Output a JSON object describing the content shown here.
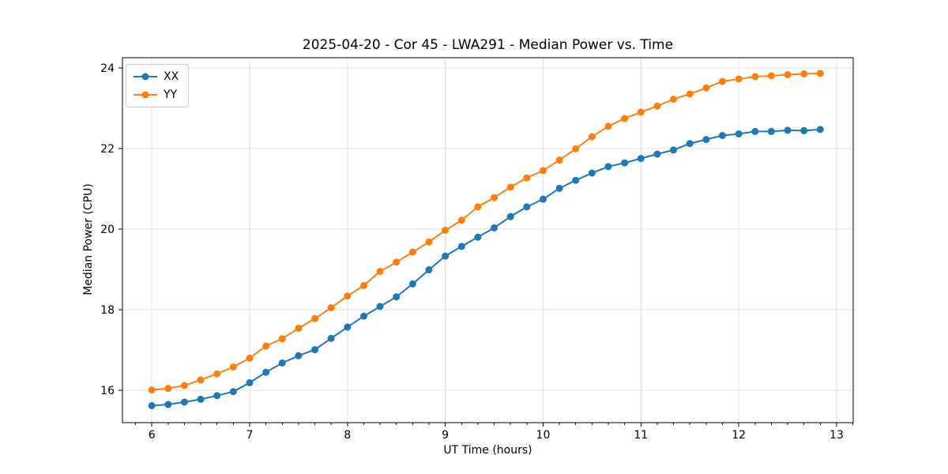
{
  "figure": {
    "background": "#ffffff",
    "text_color": "#000000",
    "grid_color": "#e0e0e0",
    "spine_color": "#000000"
  },
  "chart": {
    "title": "2025-04-20 - Cor 45 - LWA291 - Median Power vs. Time",
    "xlabel": "UT Time (hours)",
    "ylabel": "Median Power (CPU)"
  },
  "legend": {
    "position": "upper left",
    "items": [
      {
        "label": "XX",
        "color": "#1f77b4"
      },
      {
        "label": "YY",
        "color": "#ff7f0e"
      }
    ]
  },
  "chart_data": {
    "type": "line",
    "title": "2025-04-20 - Cor 45 - LWA291 - Median Power vs. Time",
    "xlabel": "UT Time (hours)",
    "ylabel": "Median Power (CPU)",
    "marker": "o",
    "grid": true,
    "legend_position": "upper left",
    "xlim": [
      5.7,
      13.17
    ],
    "ylim": [
      15.2,
      24.25
    ],
    "x_major_ticks": [
      6,
      7,
      8,
      9,
      10,
      11,
      12,
      13
    ],
    "x_minor_step": 0.166667,
    "y_major_ticks": [
      16,
      18,
      20,
      22,
      24
    ],
    "x": [
      6.0,
      6.167,
      6.333,
      6.5,
      6.667,
      6.833,
      7.0,
      7.167,
      7.333,
      7.5,
      7.667,
      7.833,
      8.0,
      8.167,
      8.333,
      8.5,
      8.667,
      8.833,
      9.0,
      9.167,
      9.333,
      9.5,
      9.667,
      9.833,
      10.0,
      10.167,
      10.333,
      10.5,
      10.667,
      10.833,
      11.0,
      11.167,
      11.333,
      11.5,
      11.667,
      11.833,
      12.0,
      12.167,
      12.333,
      12.5,
      12.667,
      12.833
    ],
    "series": [
      {
        "name": "XX",
        "color": "#1f77b4",
        "values": [
          15.62,
          15.65,
          15.71,
          15.78,
          15.87,
          15.97,
          16.19,
          16.45,
          16.68,
          16.86,
          17.01,
          17.29,
          17.57,
          17.84,
          18.08,
          18.32,
          18.64,
          18.99,
          19.33,
          19.57,
          19.8,
          20.03,
          20.31,
          20.55,
          20.74,
          21.01,
          21.21,
          21.39,
          21.55,
          21.64,
          21.75,
          21.86,
          21.96,
          22.12,
          22.22,
          22.32,
          22.36,
          22.42,
          22.42,
          22.45,
          22.44,
          22.47
        ]
      },
      {
        "name": "YY",
        "color": "#ff7f0e",
        "values": [
          16.01,
          16.05,
          16.12,
          16.26,
          16.41,
          16.58,
          16.8,
          17.1,
          17.28,
          17.54,
          17.78,
          18.05,
          18.34,
          18.6,
          18.95,
          19.18,
          19.43,
          19.68,
          19.97,
          20.22,
          20.55,
          20.78,
          21.04,
          21.27,
          21.45,
          21.71,
          21.99,
          22.29,
          22.55,
          22.74,
          22.9,
          23.05,
          23.22,
          23.35,
          23.5,
          23.66,
          23.72,
          23.78,
          23.8,
          23.83,
          23.85,
          23.86
        ]
      }
    ]
  }
}
